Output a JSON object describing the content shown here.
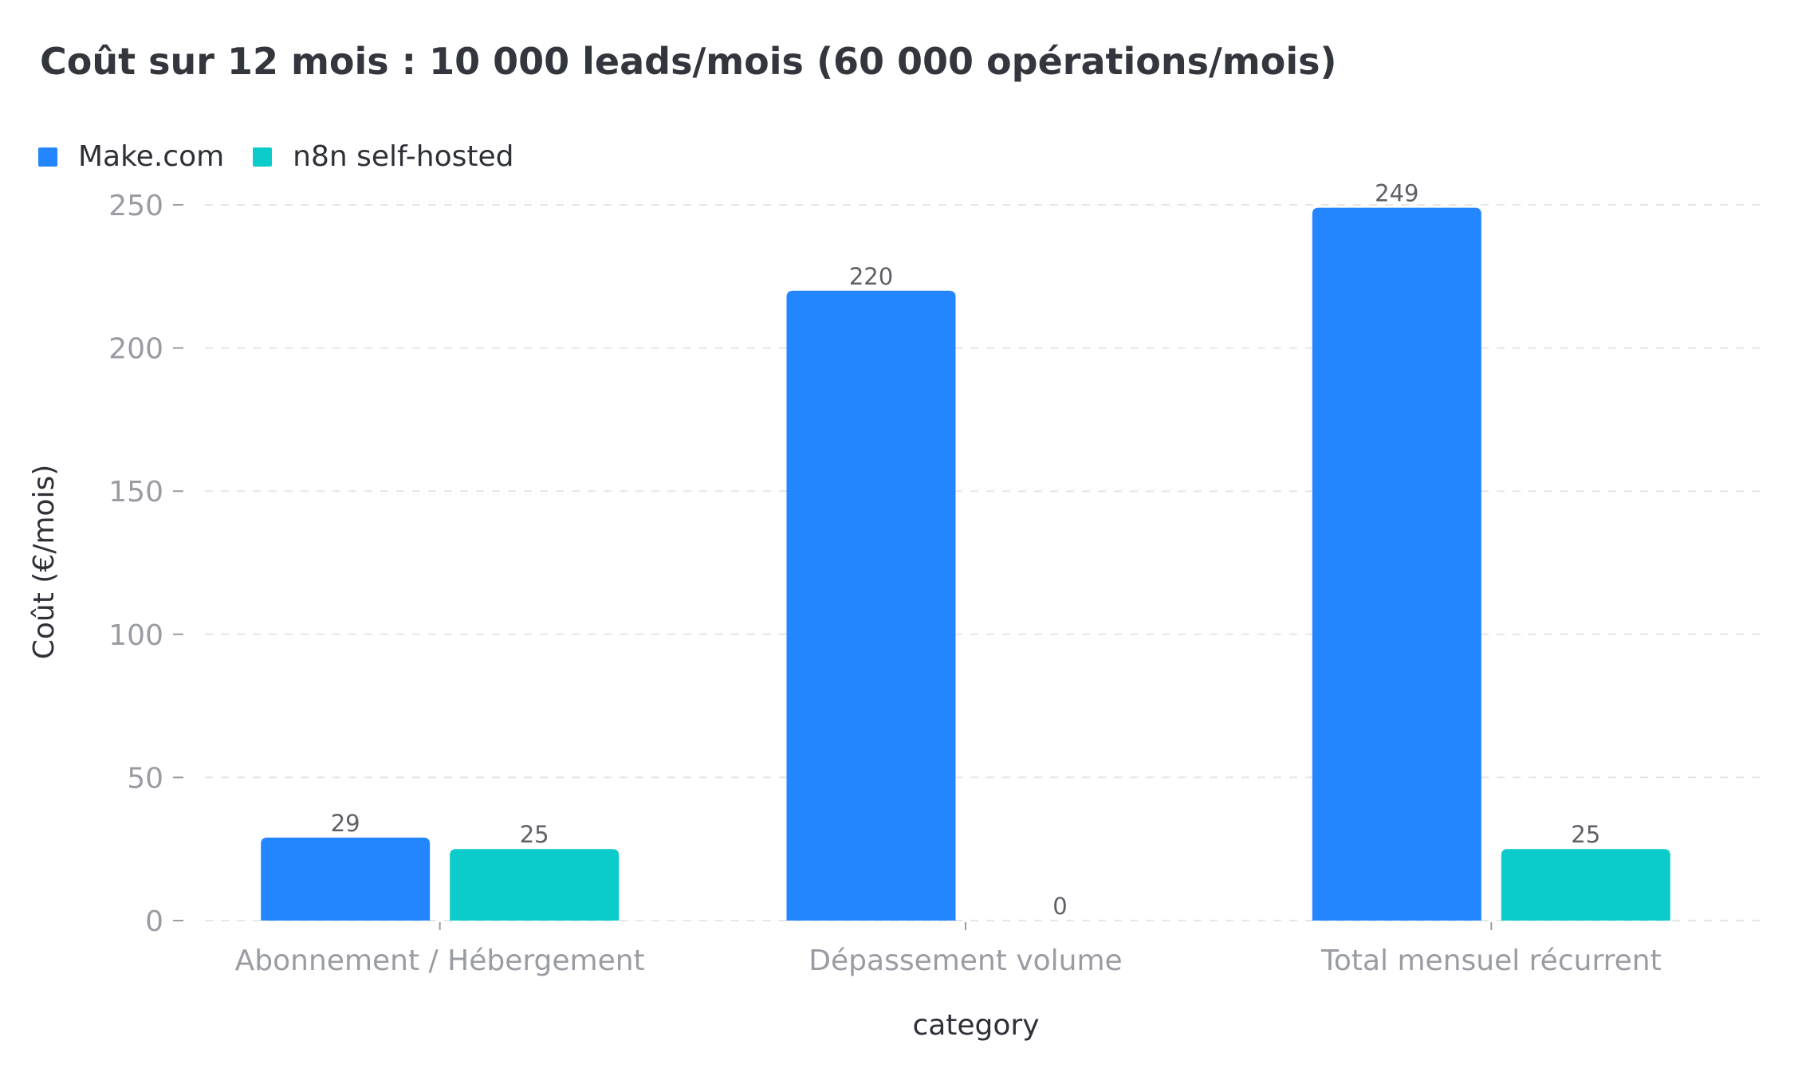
{
  "chart_data": {
    "type": "bar",
    "title": "Coût sur 12 mois : 10 000 leads/mois (60 000 opérations/mois)",
    "xlabel": "category",
    "ylabel": "Coût (€/mois)",
    "categories": [
      "Abonnement / Hébergement",
      "Dépassement volume",
      "Total mensuel récurrent"
    ],
    "series": [
      {
        "name": "Make.com",
        "values": [
          29,
          220,
          249
        ],
        "color": "#2386fe"
      },
      {
        "name": "n8n self-hosted",
        "values": [
          25,
          0,
          25
        ],
        "color": "#0bcccb"
      }
    ],
    "ylim": [
      0,
      250
    ],
    "yticks": [
      0,
      50,
      100,
      150,
      200,
      250
    ],
    "grid": true,
    "legend_position": "top-left",
    "data_labels": true
  }
}
